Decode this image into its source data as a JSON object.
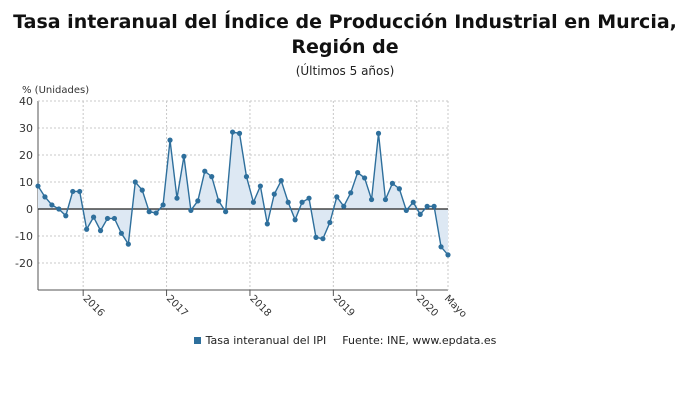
{
  "chart_data": {
    "type": "area",
    "title": "Tasa interanual del Índice de Producción Industrial en Murcia, Región de",
    "subtitle": "(Últimos 5 años)",
    "ylabel": "% (Unidades)",
    "ylim": [
      -30,
      40
    ],
    "yticks": [
      40,
      30,
      20,
      10,
      0,
      -10,
      -20
    ],
    "grid": true,
    "legend_position": "bottom",
    "x_tick_labels": [
      {
        "label": "2016",
        "index": 7
      },
      {
        "label": "2017",
        "index": 19
      },
      {
        "label": "2018",
        "index": 31
      },
      {
        "label": "2019",
        "index": 43
      },
      {
        "label": "2020",
        "index": 55
      },
      {
        "label": "Mayo",
        "index": 59
      }
    ],
    "year_separators": [
      6.5,
      18.5,
      30.5,
      42.5,
      54.5
    ],
    "series": [
      {
        "name": "Tasa interanual del IPI",
        "color": "#2e6f9c",
        "fill": "#dde8f3",
        "values": [
          8.5,
          4.5,
          1.5,
          0,
          -2.5,
          6.5,
          6.5,
          -7.5,
          -3,
          -8,
          -3.5,
          -3.5,
          -9,
          -13,
          10,
          7,
          -1,
          -1.5,
          1.5,
          25.5,
          4,
          19.5,
          -0.5,
          3,
          14,
          12,
          3,
          -1,
          28.5,
          28,
          12,
          2.5,
          8.5,
          -5.5,
          5.5,
          10.5,
          2.5,
          -4,
          2.5,
          4,
          -10.5,
          -11,
          -5,
          4.5,
          1,
          6,
          13.5,
          11.5,
          3.5,
          28,
          3.5,
          9.5,
          7.5,
          -0.5,
          2.5,
          -2,
          1,
          1,
          -14,
          -17
        ]
      }
    ]
  },
  "legend": {
    "series_label": "Tasa interanual del IPI",
    "source": "Fuente: INE, www.epdata.es"
  }
}
